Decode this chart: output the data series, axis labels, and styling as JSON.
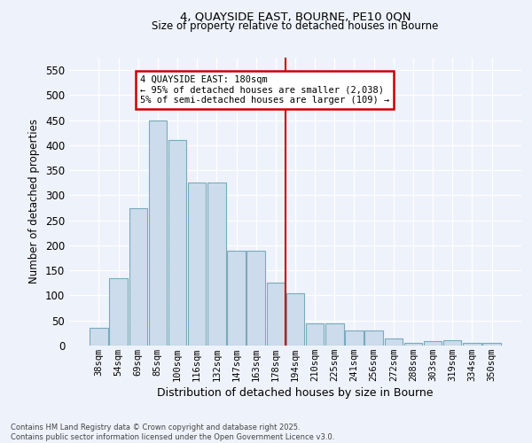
{
  "title1": "4, QUAYSIDE EAST, BOURNE, PE10 0QN",
  "title2": "Size of property relative to detached houses in Bourne",
  "xlabel": "Distribution of detached houses by size in Bourne",
  "ylabel": "Number of detached properties",
  "categories": [
    "38sqm",
    "54sqm",
    "69sqm",
    "85sqm",
    "100sqm",
    "116sqm",
    "132sqm",
    "147sqm",
    "163sqm",
    "178sqm",
    "194sqm",
    "210sqm",
    "225sqm",
    "241sqm",
    "256sqm",
    "272sqm",
    "288sqm",
    "303sqm",
    "319sqm",
    "334sqm",
    "350sqm"
  ],
  "values": [
    35,
    135,
    275,
    450,
    410,
    325,
    325,
    190,
    190,
    125,
    105,
    45,
    45,
    30,
    30,
    15,
    5,
    8,
    10,
    5,
    5
  ],
  "bar_color": "#ccdcec",
  "bar_edge_color": "#7aaabb",
  "vline_color": "#cc0000",
  "annotation_text": "4 QUAYSIDE EAST: 180sqm\n← 95% of detached houses are smaller (2,038)\n5% of semi-detached houses are larger (109) →",
  "annotation_box_color": "#ffffff",
  "annotation_box_edge": "#cc0000",
  "ylim": [
    0,
    575
  ],
  "yticks": [
    0,
    50,
    100,
    150,
    200,
    250,
    300,
    350,
    400,
    450,
    500,
    550
  ],
  "bg_color": "#eef2fa",
  "grid_color": "#ffffff",
  "footnote": "Contains HM Land Registry data © Crown copyright and database right 2025.\nContains public sector information licensed under the Open Government Licence v3.0."
}
